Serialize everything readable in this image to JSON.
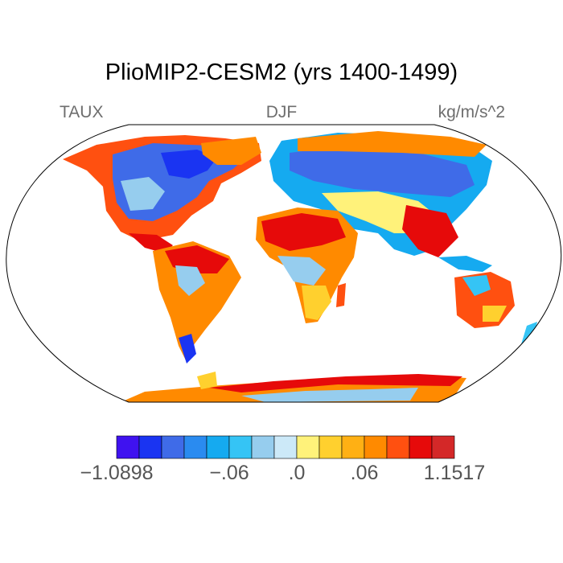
{
  "title": "PlioMIP2-CESM2 (yrs 1400-1499)",
  "left_label": "TAUX",
  "center_label": "DJF",
  "right_label": "kg/m/s^2",
  "colorbar": {
    "colors": [
      "#3f12f0",
      "#1a34f2",
      "#3f6be8",
      "#2a8bf0",
      "#15aaf0",
      "#35c4f5",
      "#96cdee",
      "#cce9f8",
      "#fff27a",
      "#ffd02e",
      "#ffb014",
      "#ff8a00",
      "#ff5010",
      "#e60a0a",
      "#d42828"
    ],
    "labels": [
      {
        "text": "−1.0898",
        "index": 0
      },
      {
        "text": "−.06",
        "index": 5
      },
      {
        "text": ".0",
        "index": 8
      },
      {
        "text": ".06",
        "index": 11
      },
      {
        "text": "1.1517",
        "index": 15
      }
    ]
  }
}
